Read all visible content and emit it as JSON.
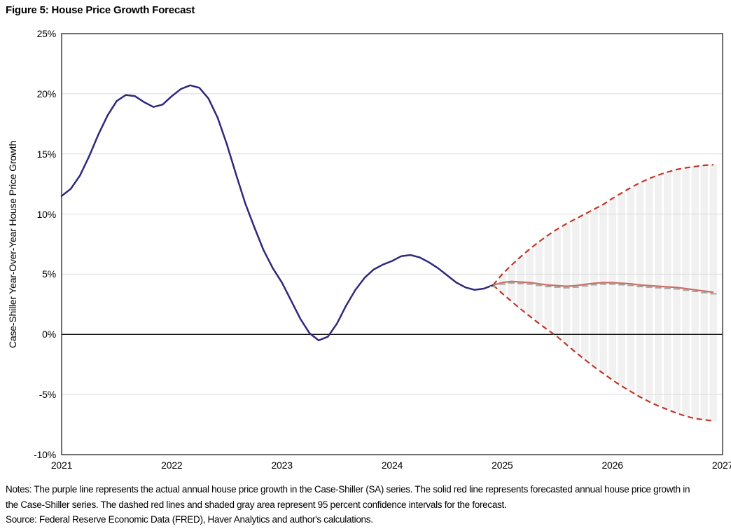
{
  "figure": {
    "title": "Figure 5: House Price Growth Forecast"
  },
  "notes": {
    "notes_text": "Notes: The purple line represents the actual annual house price growth in the Case-Shiller (SA) series. The solid red line represents forecasted annual house price growth in the Case-Shiller series. The dashed red lines and shaded gray area represent 95 percent confidence intervals for the forecast.",
    "source_text": "Source: Federal Reserve Economic Data (FRED), Haver Analytics and author's calculations."
  },
  "chart_data": {
    "type": "line",
    "title": "Figure 5: House Price Growth Forecast",
    "ylabel": "Case-Shiller Year-Over-Year House Price Growth",
    "xlabel": "",
    "ylim": [
      -10,
      25
    ],
    "xlim": [
      2021,
      2027
    ],
    "grid": "horizontal",
    "legend": "none",
    "yticks": [
      {
        "value": 25,
        "label": "25%",
        "grid": false,
        "zero": false
      },
      {
        "value": 20,
        "label": "20%",
        "grid": true,
        "zero": false
      },
      {
        "value": 15,
        "label": "15%",
        "grid": true,
        "zero": false
      },
      {
        "value": 10,
        "label": "10%",
        "grid": true,
        "zero": false
      },
      {
        "value": 5,
        "label": "5%",
        "grid": true,
        "zero": false
      },
      {
        "value": 0,
        "label": "0%",
        "grid": false,
        "zero": true
      },
      {
        "value": -5,
        "label": "-5%",
        "grid": true,
        "zero": false
      },
      {
        "value": -10,
        "label": "-10%",
        "grid": false,
        "zero": false
      }
    ],
    "xticks": [
      {
        "value": 2021,
        "label": "2021"
      },
      {
        "value": 2022,
        "label": "2022"
      },
      {
        "value": 2023,
        "label": "2023"
      },
      {
        "value": 2024,
        "label": "2024"
      },
      {
        "value": 2025,
        "label": "2025"
      },
      {
        "value": 2026,
        "label": "2026"
      },
      {
        "value": 2027,
        "label": "2027"
      }
    ],
    "colors": {
      "actual": "#2e2a7b",
      "forecast": "#c96f63",
      "ci_dashed": "#bf382a",
      "ci_area": "#f1f1f1",
      "gridline": "#dcdcdc",
      "zero_line": "#1a1a1a",
      "border": "#333333",
      "marker": "#a3a3a3"
    },
    "series": [
      {
        "name": "actual",
        "label": "Actual annual house price growth (Case-Shiller SA)",
        "style": "solid",
        "start": 2021.0,
        "step_years": 0.0833333,
        "values": [
          11.5,
          12.1,
          13.2,
          14.8,
          16.6,
          18.2,
          19.4,
          19.9,
          19.8,
          19.3,
          18.9,
          19.1,
          19.8,
          20.4,
          20.7,
          20.5,
          19.6,
          18.0,
          15.8,
          13.3,
          10.9,
          8.9,
          7.0,
          5.5,
          4.3,
          2.8,
          1.3,
          0.1,
          -0.5,
          -0.2,
          0.9,
          2.4,
          3.7,
          4.7,
          5.4,
          5.8,
          6.1,
          6.5,
          6.6,
          6.4,
          6.0,
          5.5,
          4.9,
          4.3,
          3.9,
          3.7,
          3.8,
          4.1
        ]
      },
      {
        "name": "forecast",
        "label": "Forecasted annual house price growth (Case-Shiller)",
        "style": "solid",
        "start": 2024.9167,
        "step_years": 0.0833333,
        "values": [
          4.1,
          4.3,
          4.4,
          4.35,
          4.3,
          4.2,
          4.1,
          4.05,
          4.0,
          4.05,
          4.15,
          4.25,
          4.3,
          4.3,
          4.25,
          4.2,
          4.1,
          4.05,
          4.0,
          3.95,
          3.9,
          3.8,
          3.7,
          3.6,
          3.5
        ]
      },
      {
        "name": "upper_95ci",
        "label": "95 percent confidence interval (upper)",
        "style": "dashed",
        "start": 2024.9167,
        "step_years": 0.0833333,
        "values": [
          4.1,
          5.0,
          5.75,
          6.45,
          7.1,
          7.7,
          8.25,
          8.75,
          9.2,
          9.6,
          10.0,
          10.4,
          10.8,
          11.3,
          11.75,
          12.2,
          12.6,
          12.95,
          13.25,
          13.5,
          13.7,
          13.85,
          13.95,
          14.05,
          14.1
        ]
      },
      {
        "name": "lower_95ci",
        "label": "95 percent confidence interval (lower)",
        "style": "dashed",
        "start": 2024.9167,
        "step_years": 0.0833333,
        "values": [
          4.1,
          3.4,
          2.75,
          2.1,
          1.5,
          0.9,
          0.35,
          -0.2,
          -0.85,
          -1.5,
          -2.1,
          -2.7,
          -3.25,
          -3.8,
          -4.3,
          -4.75,
          -5.2,
          -5.6,
          -5.95,
          -6.25,
          -6.55,
          -6.8,
          -7.0,
          -7.1,
          -7.2
        ]
      }
    ],
    "area": {
      "between": [
        "lower_95ci",
        "upper_95ci"
      ],
      "fill": "#f1f1f1",
      "style": "monthly-bars"
    }
  }
}
